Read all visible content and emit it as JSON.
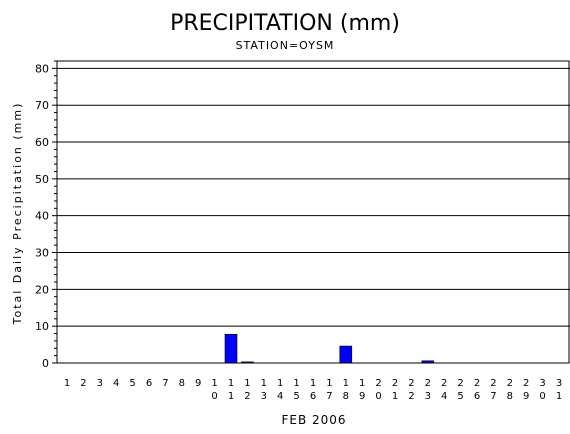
{
  "chart_data": {
    "type": "bar",
    "title": "PRECIPITATION (mm)",
    "subtitle": "STATION=OYSM",
    "xlabel": "FEB 2006",
    "ylabel": "Total Daily Precipitation (mm)",
    "ylim": [
      0,
      82
    ],
    "yticks": [
      0,
      10,
      20,
      30,
      40,
      50,
      60,
      70,
      80
    ],
    "grid": true,
    "bar_color": "#0000ff",
    "categories": [
      "1",
      "2",
      "3",
      "4",
      "5",
      "6",
      "7",
      "8",
      "9",
      "10",
      "11",
      "12",
      "13",
      "14",
      "15",
      "16",
      "17",
      "18",
      "19",
      "20",
      "21",
      "22",
      "23",
      "24",
      "25",
      "26",
      "27",
      "28",
      "29",
      "30",
      "31"
    ],
    "values": [
      0,
      0,
      0,
      0,
      0,
      0,
      0,
      0,
      0,
      0,
      7.8,
      0.3,
      0,
      0,
      0,
      0,
      0,
      4.6,
      0,
      0,
      0,
      0,
      0.6,
      0,
      0,
      0,
      0,
      0,
      0,
      0,
      0
    ]
  }
}
